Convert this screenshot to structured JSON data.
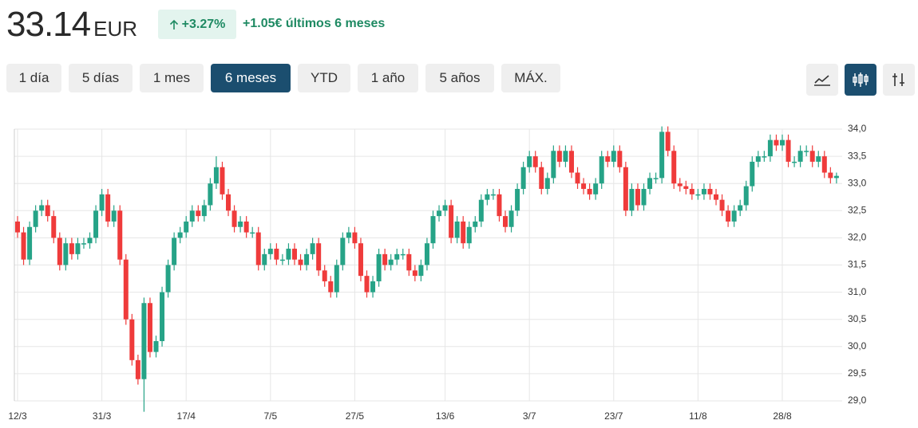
{
  "header": {
    "price": "33.14",
    "currency": "EUR",
    "change_pct": "+3.27%",
    "change_abs": "+1.05€ últimos 6 meses"
  },
  "ranges": [
    "1 día",
    "5 días",
    "1 mes",
    "6 meses",
    "YTD",
    "1 año",
    "5 años",
    "MÁX."
  ],
  "chart_data": {
    "type": "candlestick",
    "up_color": "#26a387",
    "down_color": "#ef3b3b",
    "categories": [
      "12/3",
      null,
      null,
      null,
      null,
      null,
      null,
      null,
      null,
      null,
      null,
      null,
      null,
      null,
      "31/3",
      null,
      null,
      null,
      null,
      null,
      null,
      null,
      null,
      null,
      null,
      null,
      null,
      null,
      "17/4",
      null,
      null,
      null,
      null,
      null,
      null,
      null,
      null,
      null,
      null,
      null,
      null,
      null,
      "7/5",
      null,
      null,
      null,
      null,
      null,
      null,
      null,
      null,
      null,
      null,
      null,
      null,
      null,
      "27/5",
      null,
      null,
      null,
      null,
      null,
      null,
      null,
      null,
      null,
      null,
      null,
      null,
      null,
      null,
      "13/6",
      null,
      null,
      null,
      null,
      null,
      null,
      null,
      null,
      null,
      null,
      null,
      null,
      null,
      "3/7",
      null,
      null,
      null,
      null,
      null,
      null,
      null,
      null,
      null,
      null,
      null,
      null,
      null,
      "23/7",
      null,
      null,
      null,
      null,
      null,
      null,
      null,
      null,
      null,
      null,
      null,
      null,
      null,
      "11/8",
      null,
      null,
      null,
      null,
      null,
      null,
      null,
      null,
      null,
      null,
      null,
      null,
      null,
      "28/8",
      null,
      null,
      null,
      null,
      null,
      null,
      null,
      null,
      null
    ],
    "open": [
      32.3,
      32.1,
      31.6,
      32.2,
      32.5,
      32.6,
      32.4,
      32.0,
      31.5,
      31.9,
      31.7,
      31.9,
      31.9,
      32.0,
      32.5,
      32.8,
      32.3,
      32.5,
      31.6,
      30.5,
      29.75,
      29.4,
      30.8,
      29.9,
      30.1,
      31.0,
      31.5,
      32.0,
      32.1,
      32.3,
      32.5,
      32.4,
      32.6,
      33.0,
      33.3,
      32.8,
      32.5,
      32.2,
      32.3,
      32.1,
      32.1,
      31.5,
      31.7,
      31.8,
      31.6,
      31.6,
      31.8,
      31.6,
      31.5,
      31.7,
      31.9,
      31.4,
      31.2,
      31.0,
      31.5,
      32.0,
      32.1,
      31.9,
      31.3,
      31.0,
      31.2,
      31.7,
      31.5,
      31.6,
      31.7,
      31.7,
      31.4,
      31.3,
      31.5,
      31.9,
      32.4,
      32.5,
      32.6,
      32.0,
      32.3,
      31.9,
      32.2,
      32.3,
      32.7,
      32.8,
      32.8,
      32.4,
      32.2,
      32.5,
      32.9,
      33.3,
      33.5,
      33.3,
      32.9,
      33.1,
      33.6,
      33.4,
      33.6,
      33.2,
      33.0,
      32.9,
      32.8,
      33.0,
      33.5,
      33.4,
      33.6,
      33.3,
      32.5,
      32.9,
      32.6,
      32.9,
      33.1,
      33.1,
      33.95,
      33.6,
      33.0,
      32.95,
      32.9,
      32.8,
      32.8,
      32.9,
      32.8,
      32.7,
      32.5,
      32.3,
      32.5,
      32.6,
      32.95,
      33.4,
      33.5,
      33.5,
      33.8,
      33.7,
      33.8,
      33.4,
      33.4,
      33.6,
      33.6,
      33.4,
      33.5,
      33.2,
      33.1
    ],
    "high": [
      32.4,
      32.2,
      32.3,
      32.6,
      32.7,
      32.7,
      32.5,
      32.1,
      32.0,
      32.0,
      32.0,
      32.0,
      32.1,
      32.6,
      32.9,
      32.9,
      32.6,
      32.6,
      31.7,
      30.6,
      29.85,
      30.9,
      30.9,
      30.2,
      31.1,
      31.6,
      32.1,
      32.2,
      32.4,
      32.6,
      32.6,
      32.7,
      33.1,
      33.5,
      33.4,
      32.9,
      32.6,
      32.4,
      32.4,
      32.2,
      32.2,
      31.8,
      31.9,
      31.9,
      31.7,
      31.9,
      31.9,
      31.7,
      31.8,
      32.0,
      32.0,
      31.5,
      31.3,
      31.6,
      32.1,
      32.2,
      32.2,
      32.0,
      31.4,
      31.3,
      31.8,
      31.8,
      31.7,
      31.8,
      31.8,
      31.8,
      31.5,
      31.6,
      32.0,
      32.5,
      32.6,
      32.7,
      32.7,
      32.4,
      32.4,
      32.3,
      32.4,
      32.8,
      32.9,
      32.9,
      32.9,
      32.5,
      32.6,
      33.0,
      33.4,
      33.6,
      33.6,
      33.4,
      33.2,
      33.7,
      33.7,
      33.7,
      33.7,
      33.3,
      33.1,
      33.0,
      33.1,
      33.6,
      33.6,
      33.7,
      33.7,
      33.4,
      33.0,
      33.0,
      33.0,
      33.2,
      33.2,
      34.05,
      34.05,
      33.7,
      33.1,
      33.05,
      33.0,
      32.9,
      33.0,
      33.0,
      32.9,
      32.8,
      32.6,
      32.6,
      32.7,
      33.05,
      33.5,
      33.6,
      33.6,
      33.9,
      33.9,
      33.9,
      33.9,
      33.5,
      33.7,
      33.7,
      33.7,
      33.6,
      33.6,
      33.3,
      33.2
    ],
    "low": [
      32.0,
      31.5,
      31.5,
      32.1,
      32.4,
      32.3,
      31.9,
      31.4,
      31.4,
      31.6,
      31.6,
      31.8,
      31.8,
      31.9,
      32.4,
      32.2,
      32.2,
      31.5,
      30.4,
      29.65,
      29.3,
      28.8,
      29.8,
      29.8,
      30.0,
      30.9,
      31.4,
      31.9,
      32.0,
      32.2,
      32.3,
      32.3,
      32.5,
      32.9,
      32.7,
      32.4,
      32.1,
      32.1,
      32.0,
      32.0,
      31.4,
      31.4,
      31.6,
      31.5,
      31.5,
      31.5,
      31.5,
      31.4,
      31.4,
      31.6,
      31.3,
      31.1,
      30.9,
      30.9,
      31.4,
      31.9,
      31.8,
      31.2,
      30.9,
      30.9,
      31.1,
      31.4,
      31.4,
      31.5,
      31.6,
      31.3,
      31.2,
      31.2,
      31.4,
      31.8,
      32.3,
      32.4,
      31.9,
      31.9,
      31.8,
      31.8,
      32.1,
      32.2,
      32.6,
      32.7,
      32.3,
      32.1,
      32.1,
      32.4,
      32.8,
      33.2,
      33.2,
      32.8,
      32.8,
      33.0,
      33.3,
      33.3,
      33.1,
      32.9,
      32.8,
      32.7,
      32.7,
      32.9,
      33.3,
      33.3,
      33.2,
      32.4,
      32.4,
      32.5,
      32.5,
      32.8,
      33.0,
      33.0,
      33.5,
      32.9,
      32.85,
      32.8,
      32.7,
      32.7,
      32.7,
      32.7,
      32.6,
      32.4,
      32.2,
      32.2,
      32.4,
      32.5,
      32.85,
      33.3,
      33.4,
      33.4,
      33.6,
      33.6,
      33.3,
      33.3,
      33.3,
      33.5,
      33.3,
      33.3,
      33.1,
      33.0,
      33.0
    ],
    "close": [
      32.1,
      31.6,
      32.2,
      32.5,
      32.6,
      32.4,
      32.0,
      31.5,
      31.9,
      31.7,
      31.9,
      31.9,
      32.0,
      32.5,
      32.8,
      32.3,
      32.5,
      31.6,
      30.5,
      29.75,
      29.4,
      30.8,
      29.9,
      30.1,
      31.0,
      31.5,
      32.0,
      32.1,
      32.3,
      32.5,
      32.4,
      32.6,
      33.0,
      33.3,
      32.8,
      32.5,
      32.2,
      32.3,
      32.1,
      32.1,
      31.5,
      31.7,
      31.8,
      31.6,
      31.6,
      31.8,
      31.6,
      31.5,
      31.7,
      31.9,
      31.4,
      31.2,
      31.0,
      31.5,
      32.0,
      32.1,
      31.9,
      31.3,
      31.0,
      31.2,
      31.7,
      31.5,
      31.6,
      31.7,
      31.7,
      31.4,
      31.3,
      31.5,
      31.9,
      32.4,
      32.5,
      32.6,
      32.0,
      32.3,
      31.9,
      32.2,
      32.3,
      32.7,
      32.8,
      32.8,
      32.4,
      32.2,
      32.5,
      32.9,
      33.3,
      33.5,
      33.3,
      32.9,
      33.1,
      33.6,
      33.4,
      33.6,
      33.2,
      33.0,
      32.9,
      32.8,
      33.0,
      33.5,
      33.4,
      33.6,
      33.3,
      32.5,
      32.9,
      32.6,
      32.9,
      33.1,
      33.1,
      33.95,
      33.6,
      33.0,
      32.95,
      32.9,
      32.8,
      32.8,
      32.9,
      32.8,
      32.7,
      32.5,
      32.3,
      32.5,
      32.6,
      32.95,
      33.4,
      33.5,
      33.5,
      33.8,
      33.7,
      33.8,
      33.4,
      33.4,
      33.6,
      33.6,
      33.4,
      33.5,
      33.2,
      33.1,
      33.14
    ],
    "ylim": [
      29,
      34
    ],
    "yticks": [
      {
        "value": 29,
        "label": "29,0"
      },
      {
        "value": 29.5,
        "label": "29,5"
      },
      {
        "value": 30,
        "label": "30,0"
      },
      {
        "value": 30.5,
        "label": "30,5"
      },
      {
        "value": 31,
        "label": "31,0"
      },
      {
        "value": 31.5,
        "label": "31,5"
      },
      {
        "value": 32,
        "label": "32,0"
      },
      {
        "value": 32.5,
        "label": "32,5"
      },
      {
        "value": 33,
        "label": "33,0"
      },
      {
        "value": 33.5,
        "label": "33,5"
      },
      {
        "value": 34,
        "label": "34,0"
      }
    ],
    "grid": true
  }
}
